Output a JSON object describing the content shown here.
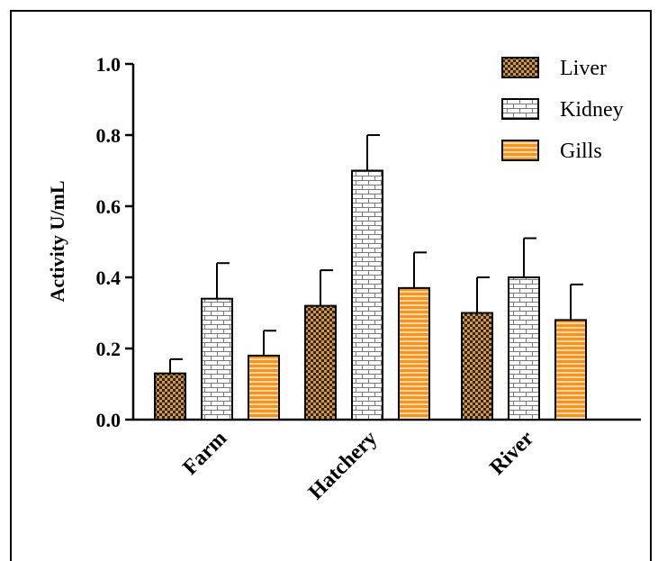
{
  "chart_data": {
    "type": "bar",
    "title": "",
    "xlabel": "",
    "ylabel": "Activity U/mL",
    "ylim": [
      0,
      1.0
    ],
    "yticks": [
      "0.0",
      "0.2",
      "0.4",
      "0.6",
      "0.8",
      "1.0"
    ],
    "categories": [
      "Farm",
      "Hatchery",
      "River"
    ],
    "series": [
      {
        "name": "Liver",
        "values": [
          0.13,
          0.32,
          0.3
        ],
        "errors": [
          0.04,
          0.1,
          0.1
        ],
        "color": "#5a3a1a",
        "pattern": "checker"
      },
      {
        "name": "Kidney",
        "values": [
          0.34,
          0.7,
          0.4
        ],
        "errors": [
          0.1,
          0.1,
          0.11
        ],
        "color": "#ffffff",
        "pattern": "brick"
      },
      {
        "name": "Gills",
        "values": [
          0.18,
          0.37,
          0.28
        ],
        "errors": [
          0.07,
          0.1,
          0.1
        ],
        "color": "#f7941d",
        "pattern": "stripes"
      }
    ],
    "legend": "top-right",
    "grid": false
  }
}
